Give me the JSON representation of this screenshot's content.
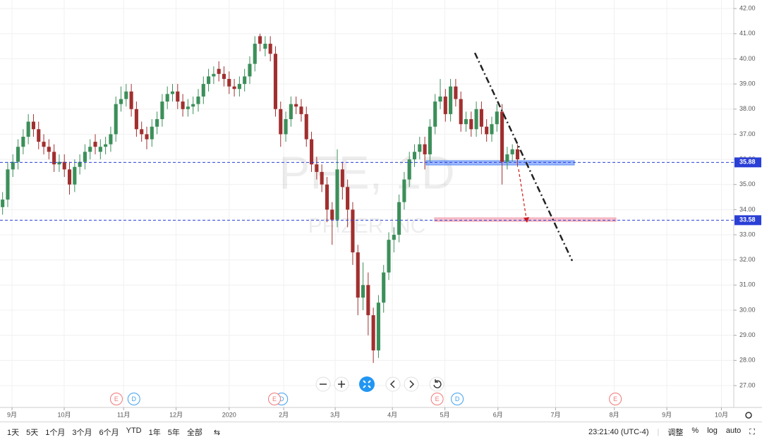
{
  "chart_data": {
    "type": "candlestick",
    "title": "PFE, 1D",
    "subtitle": "PFIZER INC",
    "up_color": "#3c8f5a",
    "down_color": "#a12f2f",
    "x": [
      0,
      1,
      2,
      3,
      4,
      5,
      6,
      7,
      8,
      9,
      10,
      11,
      12,
      13,
      14,
      15,
      16,
      17,
      18,
      19,
      20,
      21,
      22,
      23,
      24,
      25,
      26,
      27,
      28,
      29,
      30,
      31,
      32,
      33,
      34,
      35,
      36,
      37,
      38,
      39,
      40,
      41,
      42,
      43,
      44,
      45,
      46,
      47,
      48,
      49,
      50,
      51,
      52,
      53,
      54,
      55,
      56,
      57,
      58,
      59,
      60,
      61,
      62,
      63,
      64,
      65,
      66,
      67,
      68,
      69,
      70,
      71,
      72,
      73,
      74,
      75,
      76,
      77,
      78,
      79,
      80,
      81,
      82,
      83,
      84,
      85,
      86,
      87,
      88,
      89,
      90,
      91,
      92,
      93,
      94,
      95,
      96,
      97,
      98,
      99,
      100
    ],
    "open": [
      34.1,
      34.4,
      35.6,
      35.9,
      36.5,
      36.9,
      37.5,
      37.2,
      36.7,
      36.5,
      36.3,
      35.8,
      35.9,
      35.6,
      35.0,
      35.7,
      35.9,
      36.3,
      36.7,
      36.3,
      36.5,
      36.6,
      37.0,
      38.2,
      38.4,
      38.7,
      38.0,
      37.2,
      37.0,
      36.8,
      37.3,
      37.6,
      38.3,
      38.6,
      38.7,
      38.3,
      38.0,
      38.1,
      38.2,
      38.5,
      39.0,
      39.3,
      39.6,
      39.4,
      39.2,
      38.9,
      38.8,
      39.0,
      39.3,
      39.8,
      40.9,
      40.4,
      40.6,
      40.2,
      38.0,
      37.0,
      37.6,
      38.2,
      38.1,
      37.8,
      36.8,
      35.8,
      35.5,
      35.0,
      34.0,
      33.6,
      35.6,
      34.9,
      34.0,
      32.3,
      30.5,
      31.0,
      29.8,
      28.4,
      30.3,
      31.5,
      32.8,
      33.0,
      34.3,
      35.2,
      36.0,
      36.3,
      36.6,
      36.2,
      37.3,
      38.3,
      38.5,
      37.8,
      38.9,
      38.4,
      37.4,
      37.6,
      37.2,
      38.0,
      37.3,
      37.0,
      37.4,
      37.9,
      35.9,
      36.2,
      36.4
    ],
    "high": [
      34.7,
      35.9,
      36.2,
      36.8,
      37.2,
      37.8,
      37.8,
      37.5,
      37.0,
      36.8,
      36.6,
      36.2,
      36.2,
      35.9,
      36.0,
      36.2,
      36.6,
      36.8,
      37.0,
      36.8,
      36.9,
      37.3,
      38.5,
      38.9,
      39.0,
      39.0,
      38.3,
      37.5,
      37.3,
      37.6,
      37.9,
      38.6,
      38.9,
      39.0,
      39.0,
      38.6,
      38.4,
      38.5,
      38.8,
      39.3,
      39.6,
      39.7,
      39.9,
      39.7,
      39.5,
      39.2,
      39.3,
      39.6,
      40.1,
      40.9,
      41.0,
      40.9,
      40.9,
      40.5,
      38.3,
      37.9,
      38.5,
      38.5,
      38.4,
      38.1,
      37.1,
      36.1,
      35.8,
      35.3,
      34.3,
      36.4,
      35.9,
      35.2,
      34.3,
      32.6,
      31.9,
      31.5,
      30.1,
      30.6,
      31.8,
      33.1,
      33.3,
      34.6,
      35.5,
      36.3,
      36.6,
      36.9,
      36.9,
      37.6,
      38.6,
      39.2,
      38.8,
      39.2,
      39.2,
      38.7,
      37.9,
      37.9,
      38.3,
      38.3,
      37.6,
      37.7,
      38.2,
      38.2,
      36.5,
      36.6,
      36.6
    ],
    "low": [
      33.8,
      34.1,
      35.3,
      35.6,
      36.2,
      36.6,
      36.9,
      36.4,
      36.2,
      36.0,
      35.5,
      35.5,
      35.3,
      34.6,
      34.7,
      35.4,
      35.6,
      36.0,
      36.2,
      36.0,
      36.2,
      36.3,
      36.7,
      37.9,
      38.1,
      37.7,
      36.9,
      36.7,
      36.4,
      36.5,
      37.0,
      37.3,
      38.0,
      38.3,
      38.0,
      37.7,
      37.7,
      37.8,
      37.9,
      38.2,
      38.7,
      39.0,
      39.1,
      38.9,
      38.6,
      38.5,
      38.5,
      38.7,
      39.0,
      39.5,
      40.3,
      40.1,
      39.9,
      37.7,
      36.5,
      36.7,
      37.3,
      37.8,
      37.5,
      36.5,
      35.5,
      35.2,
      34.7,
      33.5,
      32.6,
      33.3,
      34.4,
      33.3,
      31.8,
      29.8,
      30.0,
      29.0,
      27.9,
      28.1,
      29.9,
      31.2,
      32.3,
      32.7,
      34.0,
      34.9,
      35.7,
      36.0,
      35.6,
      35.9,
      37.0,
      38.0,
      37.5,
      37.5,
      38.1,
      37.1,
      37.1,
      36.9,
      36.9,
      37.0,
      36.7,
      36.7,
      37.1,
      35.0,
      35.6,
      35.9,
      35.7
    ],
    "close": [
      34.4,
      35.6,
      35.9,
      36.5,
      36.9,
      37.5,
      37.2,
      36.7,
      36.5,
      36.3,
      35.8,
      35.9,
      35.6,
      35.0,
      35.7,
      35.9,
      36.3,
      36.5,
      36.5,
      36.5,
      36.6,
      37.0,
      38.2,
      38.4,
      38.7,
      38.0,
      37.2,
      37.0,
      36.8,
      37.3,
      37.6,
      38.3,
      38.6,
      38.7,
      38.3,
      38.0,
      38.1,
      38.2,
      38.5,
      39.0,
      39.3,
      39.4,
      39.4,
      39.2,
      38.9,
      38.8,
      39.0,
      39.3,
      39.8,
      40.6,
      40.6,
      40.6,
      40.2,
      38.0,
      37.0,
      37.6,
      38.2,
      38.1,
      37.8,
      36.8,
      35.8,
      35.5,
      35.0,
      34.0,
      33.6,
      35.6,
      34.9,
      34.0,
      32.3,
      30.5,
      31.0,
      29.8,
      28.4,
      30.3,
      31.5,
      32.8,
      33.0,
      34.3,
      35.2,
      36.0,
      36.3,
      36.6,
      36.2,
      37.3,
      38.3,
      38.5,
      37.8,
      38.9,
      38.4,
      37.4,
      37.6,
      37.2,
      38.0,
      37.3,
      37.0,
      37.4,
      37.9,
      35.9,
      36.2,
      36.4,
      36.0
    ],
    "xlim": [
      -0.5,
      142
    ],
    "xticks": [
      {
        "value": 1.83,
        "label": "9月"
      },
      {
        "value": 11.97,
        "label": "10月"
      },
      {
        "value": 23.5,
        "label": "11月"
      },
      {
        "value": 33.7,
        "label": "12月"
      },
      {
        "value": 44.0,
        "label": "2020"
      },
      {
        "value": 54.6,
        "label": "2月"
      },
      {
        "value": 64.6,
        "label": "3月"
      },
      {
        "value": 75.7,
        "label": "4月"
      },
      {
        "value": 85.9,
        "label": "5月"
      },
      {
        "value": 96.2,
        "label": "6月"
      },
      {
        "value": 107.4,
        "label": "7月"
      },
      {
        "value": 118.8,
        "label": "8月"
      },
      {
        "value": 129.0,
        "label": "9月"
      },
      {
        "value": 139.6,
        "label": "10月"
      }
    ],
    "ylim": [
      26.13,
      42.34
    ],
    "yticks": [
      {
        "value": 27,
        "label": "27.00"
      },
      {
        "value": 28,
        "label": "28.00"
      },
      {
        "value": 29,
        "label": "29.00"
      },
      {
        "value": 30,
        "label": "30.00"
      },
      {
        "value": 31,
        "label": "31.00"
      },
      {
        "value": 32,
        "label": "32.00"
      },
      {
        "value": 33,
        "label": "33.00"
      },
      {
        "value": 34,
        "label": "34.00"
      },
      {
        "value": 35,
        "label": "35.00"
      },
      {
        "value": 36,
        "label": "36.00"
      },
      {
        "value": 37,
        "label": "37.00"
      },
      {
        "value": 38,
        "label": "38.00"
      },
      {
        "value": 39,
        "label": "39.00"
      },
      {
        "value": 40,
        "label": "40.00"
      },
      {
        "value": 41,
        "label": "41.00"
      },
      {
        "value": 42,
        "label": "42.00"
      }
    ],
    "grid": true,
    "price_lines": [
      {
        "value": 35.88,
        "color": "#2a3fd6"
      },
      {
        "value": 33.58,
        "color": "#2a3fd6"
      }
    ],
    "events": [
      {
        "x": 22.1,
        "label": "E",
        "color": "#f07878"
      },
      {
        "x": 25.5,
        "label": "D",
        "color": "#3fa0ee"
      },
      {
        "x": 54.2,
        "label": "D",
        "color": "#3fa0ee"
      },
      {
        "x": 52.8,
        "label": "E",
        "color": "#f07878"
      },
      {
        "x": 84.4,
        "label": "E",
        "color": "#f07878"
      },
      {
        "x": 88.3,
        "label": "D",
        "color": "#3fa0ee"
      },
      {
        "x": 119.0,
        "label": "E",
        "color": "#f07878"
      }
    ]
  },
  "toolbar": {
    "ranges": [
      "1天",
      "5天",
      "1个月",
      "3个月",
      "6个月",
      "YTD",
      "1年",
      "5年",
      "全部"
    ],
    "time": "23:21:40 (UTC-4)",
    "options": [
      "调整",
      "%",
      "log",
      "auto"
    ]
  }
}
